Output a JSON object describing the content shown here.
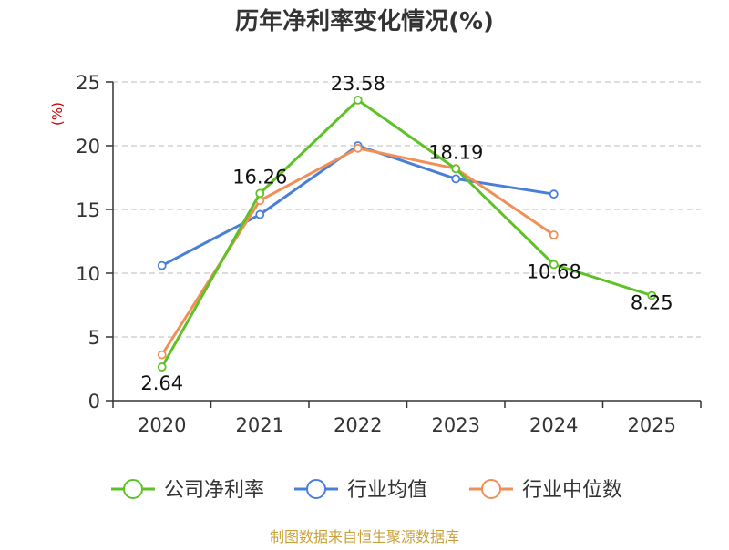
{
  "chart_data": {
    "type": "line",
    "title": "历年净利率变化情况(%)",
    "ylabel": "(%)",
    "xlabel": "",
    "categories": [
      "2020",
      "2021",
      "2022",
      "2023",
      "2024",
      "2025"
    ],
    "ylim": [
      0,
      25
    ],
    "yticks": [
      "0",
      "5",
      "10",
      "15",
      "20",
      "25"
    ],
    "grid": "horizontal dashed",
    "legend_position": "bottom",
    "series": [
      {
        "name": "公司净利率",
        "color": "#5ec227",
        "values": [
          2.64,
          16.26,
          23.58,
          18.19,
          10.68,
          8.25
        ],
        "labels": [
          "2.64",
          "16.26",
          "23.58",
          "18.19",
          "10.68",
          "8.25"
        ]
      },
      {
        "name": "行业均值",
        "color": "#4a7fd9",
        "values": [
          10.6,
          14.6,
          20.0,
          17.4,
          16.2,
          null
        ]
      },
      {
        "name": "行业中位数",
        "color": "#f28f56",
        "values": [
          3.6,
          15.7,
          19.8,
          18.2,
          13.0,
          null
        ]
      }
    ]
  },
  "source_note": "制图数据来自恒生聚源数据库",
  "colors": {
    "title": "#333333",
    "axis": "#333333",
    "ylabel": "#cc0000",
    "grid": "#bbbbbb",
    "source": "#c9a13a"
  }
}
